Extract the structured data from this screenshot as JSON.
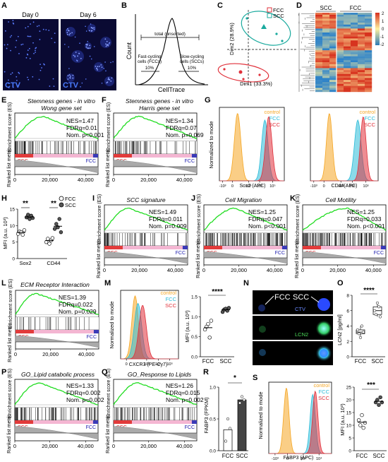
{
  "panels": {
    "A": {
      "label": "A",
      "img1": "Day 0",
      "img2": "Day 6",
      "dye": "CTV"
    },
    "B": {
      "label": "B",
      "ylabel": "Count",
      "xlabel": "CellTrace",
      "total": "total (unsorted)",
      "fcc_line1": "Fast-cycling",
      "fcc_line2": "cells (FCCs)",
      "fcc_pct": "10%",
      "scc_line1": "Slow-cycling",
      "scc_line2": "cells (SCCs)",
      "scc_pct": "10%"
    },
    "C": {
      "label": "C",
      "xlabel": "Dim1 (33.3%)",
      "ylabel": "Dim2 (28.9%)",
      "legend": [
        "FCC",
        "SCC"
      ]
    },
    "D": {
      "label": "D",
      "groups": [
        "SCC",
        "FCC"
      ],
      "colorbar_ticks": [
        "2",
        "1",
        "0",
        "-1",
        "-2"
      ]
    },
    "E": {
      "label": "E",
      "title1": "Stemness genes - in vitro",
      "title2": "Wong gene set",
      "stats": [
        "NES=1.47",
        "FDRq=0.01",
        "Nom. p<0.001"
      ],
      "left": "SCC",
      "right": "FCC"
    },
    "F": {
      "label": "F",
      "title1": "Stemness genes - in vitro",
      "title2": "Harris gene set",
      "stats": [
        "NES=1.34",
        "FDRq=0.07",
        "Nom. p=0.069"
      ],
      "left": "SCC",
      "right": "FCC"
    },
    "G": {
      "label": "G",
      "ylabel": "Normalized to mode",
      "xlabel1": "Sox2 (APC)",
      "xlabel2": "CD44(APC)",
      "legend": [
        "control",
        "FCC",
        "SCC"
      ]
    },
    "H": {
      "label": "H",
      "ylabel": "MFI (a.u. 10³)",
      "categories": [
        "Sox2",
        "CD44"
      ],
      "legend": [
        "FCC",
        "SCC"
      ],
      "sig": [
        "**",
        "**"
      ],
      "yticks": [
        "0",
        "5",
        "10",
        "15"
      ]
    },
    "I": {
      "label": "I",
      "title": "SCC signature",
      "stats": [
        "NES=1.49",
        "FDRq=0.011",
        "Nom. p=0.009"
      ],
      "left": "SCC",
      "right": "FCC"
    },
    "J": {
      "label": "J",
      "title": "Cell Migration",
      "stats": [
        "NES=1.25",
        "FDRq=0.047",
        "Nom. p<0.001"
      ],
      "left": "SCC",
      "right": "FCC"
    },
    "K": {
      "label": "K",
      "title": "Cell Motility",
      "stats": [
        "NES=1.25",
        "FDRq=0.033",
        "Nom. p<0.001"
      ],
      "left": "SCC",
      "right": "FCC"
    },
    "L": {
      "label": "L",
      "title": "ECM Receptor Interaction",
      "stats": [
        "NES=1.39",
        "FDRq=0.022",
        "Nom. p=0.029"
      ],
      "left": "SCC",
      "right": "FCC"
    },
    "M": {
      "label": "M",
      "ylabel": "Normalized to mode",
      "xlabel": "CXCR3 (PE-Cy7)",
      "legend": [
        "control",
        "FCC",
        "SCC"
      ],
      "bar_ylabel": "MFI (a.u. 10³)",
      "categories": [
        "FCC",
        "SCC"
      ],
      "sig": "****"
    },
    "N": {
      "label": "N",
      "fcc": "FCC",
      "scc": "SCC",
      "ctv": "CTV",
      "lcn2": "LCN2"
    },
    "O": {
      "label": "O",
      "ylabel": "LCN2 [pg/ml]",
      "categories": [
        "FCC",
        "SCC"
      ],
      "sig": "****"
    },
    "P": {
      "label": "P",
      "title": "GO_Lipid catabolic process",
      "stats": [
        "NES=1.33",
        "FDRq=0.002",
        "Nom. p=0.002"
      ],
      "left": "SCC",
      "right": "FCC"
    },
    "Q": {
      "label": "Q",
      "title": "GO_Response to Lipids",
      "stats": [
        "NES=1.26",
        "FDRq=0.015",
        "Nom. p=0.002"
      ],
      "left": "SCC",
      "right": "FCC"
    },
    "R": {
      "label": "R",
      "ylabel": "FABP3 (FPKM)",
      "categories": [
        "FCC",
        "SCC"
      ],
      "sig": "*"
    },
    "S": {
      "label": "S",
      "ylabel": "Normalized to mode",
      "xlabel": "FABP3 (APC)",
      "legend": [
        "control",
        "FCC",
        "SCC"
      ],
      "bar_ylabel": "MFI (a.u. 10³)",
      "categories": [
        "FCC",
        "SCC"
      ],
      "sig": "***"
    }
  },
  "gsea_axis": {
    "es_label": "Enrichment score (ES)",
    "rank_label": "Ranked list metric",
    "xticks": [
      "0",
      "20,000",
      "40,000"
    ]
  },
  "colors": {
    "control": "#f5a623",
    "fcc": "#2bbbd8",
    "scc": "#e0303a",
    "gsea_line": "#22dd22",
    "pink_bar": "#f4b6d2",
    "c_fcc": "#e0303a",
    "c_scc": "#1aaa9e"
  },
  "chart_data": [
    {
      "type": "scatter",
      "panel": "H",
      "series": [
        {
          "name": "FCC",
          "values": [
            {
              "x": "Sox2",
              "y": [
                7.5,
                8.2,
                8.0,
                7.2,
                8.6
              ]
            },
            {
              "x": "CD44",
              "y": [
                5.0,
                6.0,
                4.5,
                5.5,
                6.2
              ]
            }
          ]
        },
        {
          "name": "SCC",
          "values": [
            {
              "x": "Sox2",
              "y": [
                12.5,
                13.3,
                12.0,
                13.0,
                12.3
              ]
            },
            {
              "x": "CD44",
              "y": [
                9.0,
                10.5,
                9.5,
                12.0,
                8.0
              ]
            }
          ]
        }
      ],
      "ylim": [
        0,
        15
      ]
    },
    {
      "type": "scatter",
      "panel": "M",
      "categories": [
        "FCC",
        "SCC"
      ],
      "series": [
        {
          "name": "FCC",
          "values": [
            0.68,
            0.75,
            0.82,
            0.48,
            0.9
          ]
        },
        {
          "name": "SCC",
          "values": [
            1.12,
            1.18,
            1.2,
            1.15,
            1.22
          ]
        }
      ],
      "ylim": [
        0,
        1.5
      ],
      "yticks": [
        "0.0",
        "0.5",
        "1.0",
        "1.5"
      ]
    },
    {
      "type": "scatter",
      "panel": "O",
      "categories": [
        "FCC",
        "SCC"
      ],
      "series": [
        {
          "name": "FCC",
          "values": [
            3.5,
            3.0,
            2.5,
            4.0,
            3.2
          ]
        },
        {
          "name": "SCC",
          "values": [
            6.0,
            5.5,
            7.0,
            6.5,
            5.2
          ]
        }
      ],
      "ylim": [
        0,
        8
      ],
      "yticks": [
        "0",
        "2",
        "4",
        "6",
        "8"
      ]
    },
    {
      "type": "bar",
      "panel": "R",
      "categories": [
        "FCC",
        "SCC"
      ],
      "values": [
        0.33,
        0.8
      ],
      "points": [
        [
          0.15,
          0.5,
          0.35
        ],
        [
          0.75,
          0.85,
          0.8
        ]
      ],
      "ylim": [
        0,
        1.0
      ],
      "yticks": [
        "0.0",
        "0.5",
        "1.0"
      ]
    },
    {
      "type": "scatter",
      "panel": "S",
      "categories": [
        "FCC",
        "SCC"
      ],
      "series": [
        {
          "name": "FCC",
          "values": [
            12,
            10,
            14,
            9,
            11
          ]
        },
        {
          "name": "SCC",
          "values": [
            19,
            20,
            18,
            21,
            19
          ]
        }
      ],
      "ylim": [
        0,
        25
      ],
      "yticks": [
        "0",
        "5",
        "10",
        "15",
        "20",
        "25"
      ]
    }
  ]
}
